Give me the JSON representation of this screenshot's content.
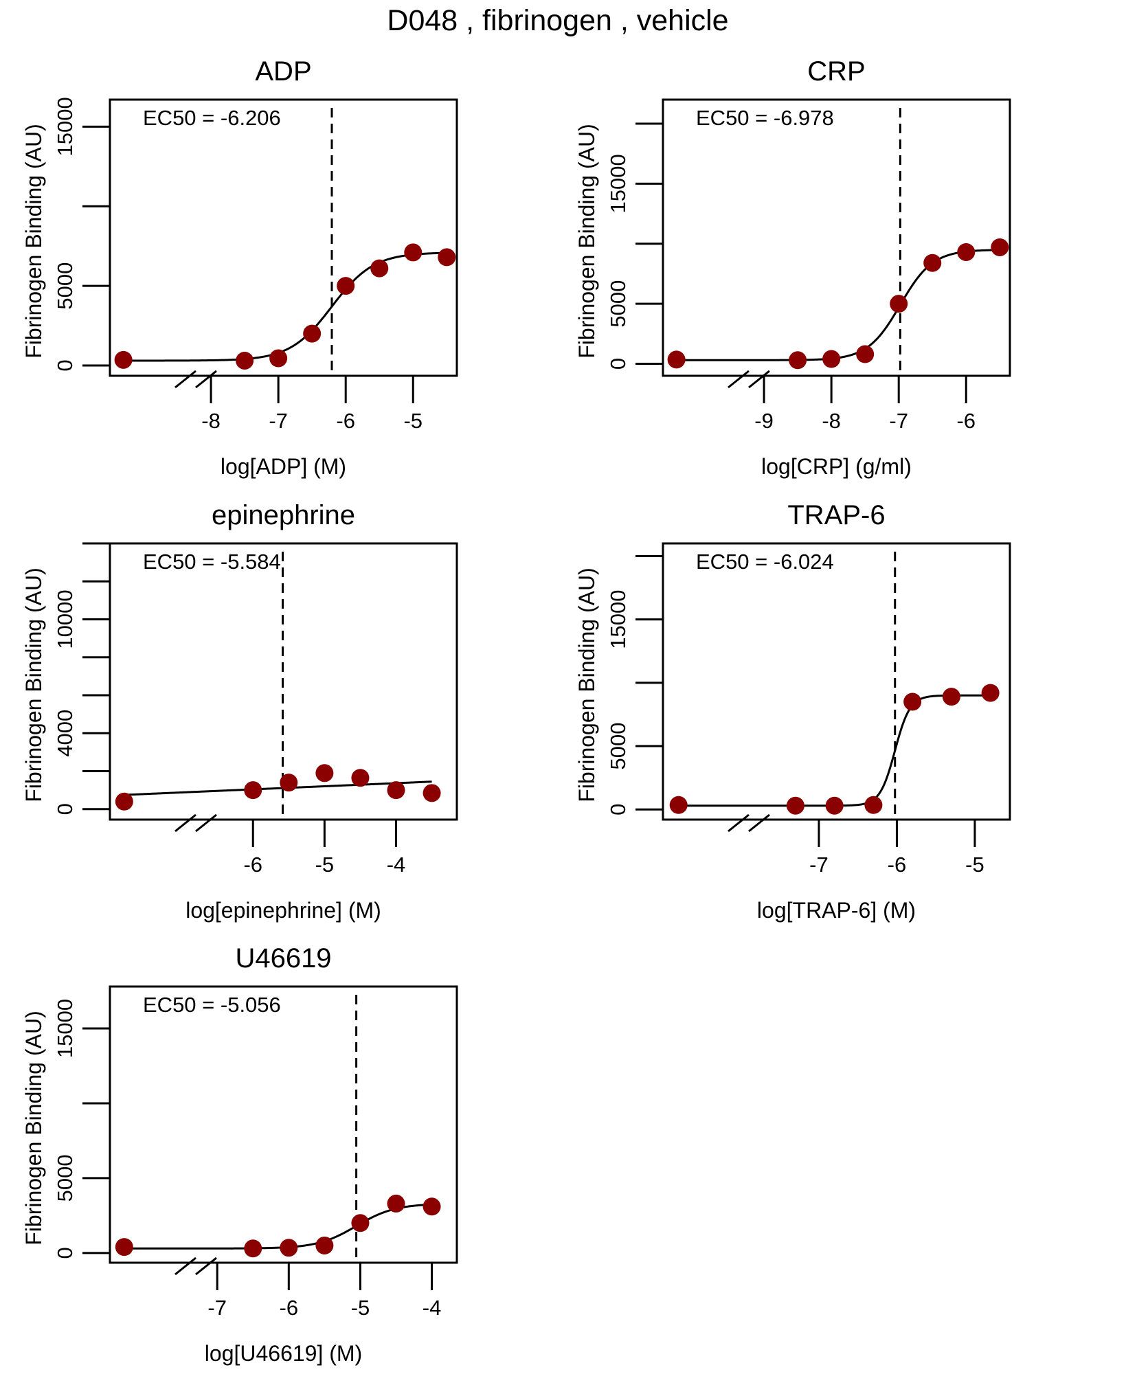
{
  "figure": {
    "title": "D048 ,  fibrinogen ,  vehicle"
  },
  "style": {
    "point_color": "#8b0000",
    "line_color": "#000000"
  },
  "chart_data": [
    {
      "type": "scatter",
      "title": "ADP",
      "xlabel": "log[ADP] (M)",
      "ylabel": "Fibrinogen Binding (AU)",
      "ec50_label": "EC50 =  -6.206",
      "ec50": -6.206,
      "xlim": [
        -9.5,
        -4.35
      ],
      "ylim": [
        -650,
        16700
      ],
      "xticks": [
        -8,
        -7,
        -6,
        -5
      ],
      "yticks": [
        0,
        5000,
        10000,
        15000
      ],
      "ytick_labels": [
        "0",
        "5000",
        "",
        "15000"
      ],
      "baseline_x": -9.3,
      "points": {
        "x": [
          -9.3,
          -7.5,
          -7.0,
          -6.5,
          -6.0,
          -5.5,
          -5.0,
          -4.5
        ],
        "y": [
          350,
          300,
          450,
          2000,
          5000,
          6100,
          7100,
          6800
        ]
      },
      "fit": {
        "bottom": 300,
        "top": 7100,
        "ec50": -6.206,
        "hill": 1.4
      }
    },
    {
      "type": "scatter",
      "title": "CRP",
      "xlabel": "log[CRP] (g/ml)",
      "ylabel": "Fibrinogen Binding (AU)",
      "ec50_label": "EC50 =  -6.978",
      "ec50": -6.978,
      "xlim": [
        -10.5,
        -5.35
      ],
      "ylim": [
        -1000,
        22000
      ],
      "xticks": [
        -9,
        -8,
        -7,
        -6
      ],
      "yticks": [
        0,
        5000,
        10000,
        15000,
        20000
      ],
      "ytick_labels": [
        "0",
        "5000",
        "",
        "15000",
        ""
      ],
      "baseline_x": -10.3,
      "points": {
        "x": [
          -10.3,
          -8.5,
          -8.0,
          -7.5,
          -7.0,
          -6.5,
          -6.0,
          -5.5
        ],
        "y": [
          350,
          300,
          400,
          800,
          5000,
          8400,
          9300,
          9700
        ]
      },
      "fit": {
        "bottom": 300,
        "top": 9500,
        "ec50": -6.978,
        "hill": 1.8
      }
    },
    {
      "type": "scatter",
      "title": "epinephrine",
      "xlabel": "log[epinephrine] (M)",
      "ylabel": "Fibrinogen Binding (AU)",
      "ec50_label": "EC50 =  -5.584",
      "ec50": -5.584,
      "xlim": [
        -8.0,
        -3.15
      ],
      "ylim": [
        -550,
        14000
      ],
      "xticks": [
        -6,
        -5,
        -4
      ],
      "yticks": [
        0,
        2000,
        4000,
        6000,
        8000,
        10000,
        12000,
        14000
      ],
      "ytick_labels": [
        "0",
        "",
        "4000",
        "",
        "",
        "10000",
        "",
        ""
      ],
      "baseline_x": -7.8,
      "points": {
        "x": [
          -7.8,
          -6.0,
          -5.5,
          -5.0,
          -4.5,
          -4.0,
          -3.5
        ],
        "y": [
          400,
          1000,
          1400,
          1900,
          1650,
          1000,
          850
        ]
      },
      "fit": {
        "linear": true,
        "y0": 750,
        "y1": 1450
      }
    },
    {
      "type": "scatter",
      "title": "TRAP-6",
      "xlabel": "log[TRAP-6] (M)",
      "ylabel": "Fibrinogen Binding (AU)",
      "ec50_label": "EC50 =  -6.024",
      "ec50": -6.024,
      "xlim": [
        -9.0,
        -4.55
      ],
      "ylim": [
        -800,
        21000
      ],
      "xticks": [
        -7,
        -6,
        -5
      ],
      "yticks": [
        0,
        5000,
        10000,
        15000,
        20000
      ],
      "ytick_labels": [
        "0",
        "5000",
        "",
        "15000",
        ""
      ],
      "baseline_x": -8.8,
      "points": {
        "x": [
          -8.8,
          -7.3,
          -6.8,
          -6.3,
          -5.8,
          -5.3,
          -4.8
        ],
        "y": [
          350,
          300,
          300,
          350,
          8500,
          8900,
          9200
        ]
      },
      "fit": {
        "bottom": 300,
        "top": 9000,
        "ec50": -6.024,
        "hill": 4.5
      }
    },
    {
      "type": "scatter",
      "title": "U46619",
      "xlabel": "log[U46619] (M)",
      "ylabel": "Fibrinogen Binding (AU)",
      "ec50_label": "EC50 =  -5.056",
      "ec50": -5.056,
      "xlim": [
        -8.5,
        -3.65
      ],
      "ylim": [
        -650,
        17800
      ],
      "xticks": [
        -7,
        -6,
        -5,
        -4
      ],
      "yticks": [
        0,
        5000,
        10000,
        15000
      ],
      "ytick_labels": [
        "0",
        "5000",
        "",
        "15000"
      ],
      "baseline_x": -8.3,
      "points": {
        "x": [
          -8.3,
          -6.5,
          -6.0,
          -5.5,
          -5.0,
          -4.5,
          -4.0
        ],
        "y": [
          400,
          300,
          350,
          500,
          2000,
          3300,
          3100
        ]
      },
      "fit": {
        "bottom": 300,
        "top": 3300,
        "ec50": -5.056,
        "hill": 1.6
      }
    }
  ]
}
